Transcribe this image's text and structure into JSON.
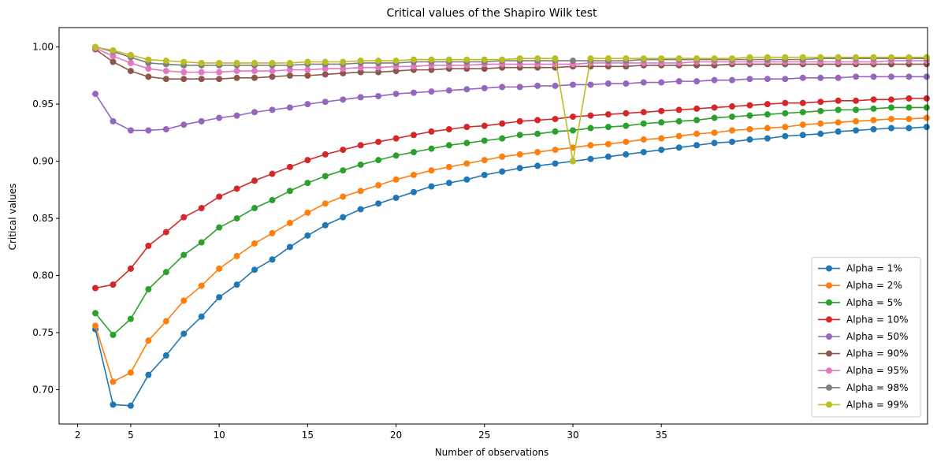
{
  "chart_data": {
    "type": "line",
    "title": "Critical values of the Shapiro Wilk test",
    "xlabel": "Number of observations",
    "ylabel": "Critical values",
    "xlim": [
      0.95,
      50.05
    ],
    "ylim": [
      0.67,
      1.017
    ],
    "xticks": [
      2,
      5,
      10,
      15,
      20,
      25,
      30,
      35
    ],
    "yticks": [
      0.7,
      0.75,
      0.8,
      0.85,
      0.9,
      0.95,
      1.0
    ],
    "ytick_labels": [
      "0.70",
      "0.75",
      "0.80",
      "0.85",
      "0.90",
      "0.95",
      "1.00"
    ],
    "legend_position": "lower right",
    "grid": false,
    "x": [
      3,
      4,
      5,
      6,
      7,
      8,
      9,
      10,
      11,
      12,
      13,
      14,
      15,
      16,
      17,
      18,
      19,
      20,
      21,
      22,
      23,
      24,
      25,
      26,
      27,
      28,
      29,
      30,
      31,
      32,
      33,
      34,
      35,
      36,
      37,
      38,
      39,
      40,
      41,
      42,
      43,
      44,
      45,
      46,
      47,
      48,
      49,
      50
    ],
    "series": [
      {
        "name": "Alpha = 1%",
        "color": "#1f77b4",
        "values": [
          0.753,
          0.687,
          0.686,
          0.713,
          0.73,
          0.749,
          0.764,
          0.781,
          0.792,
          0.805,
          0.814,
          0.825,
          0.835,
          0.844,
          0.851,
          0.858,
          0.863,
          0.868,
          0.873,
          0.878,
          0.881,
          0.884,
          0.888,
          0.891,
          0.894,
          0.896,
          0.898,
          0.9,
          0.902,
          0.904,
          0.906,
          0.908,
          0.91,
          0.912,
          0.914,
          0.916,
          0.917,
          0.919,
          0.92,
          0.922,
          0.923,
          0.924,
          0.926,
          0.927,
          0.928,
          0.929,
          0.929,
          0.93
        ]
      },
      {
        "name": "Alpha = 2%",
        "color": "#ff7f0e",
        "values": [
          0.756,
          0.707,
          0.715,
          0.743,
          0.76,
          0.778,
          0.791,
          0.806,
          0.817,
          0.828,
          0.837,
          0.846,
          0.855,
          0.863,
          0.869,
          0.874,
          0.879,
          0.884,
          0.888,
          0.892,
          0.895,
          0.898,
          0.901,
          0.904,
          0.906,
          0.908,
          0.91,
          0.912,
          0.914,
          0.915,
          0.917,
          0.919,
          0.92,
          0.922,
          0.924,
          0.925,
          0.927,
          0.928,
          0.929,
          0.93,
          0.932,
          0.933,
          0.934,
          0.935,
          0.936,
          0.937,
          0.937,
          0.938
        ]
      },
      {
        "name": "Alpha = 5%",
        "color": "#2ca02c",
        "values": [
          0.767,
          0.748,
          0.762,
          0.788,
          0.803,
          0.818,
          0.829,
          0.842,
          0.85,
          0.859,
          0.866,
          0.874,
          0.881,
          0.887,
          0.892,
          0.897,
          0.901,
          0.905,
          0.908,
          0.911,
          0.914,
          0.916,
          0.918,
          0.92,
          0.923,
          0.924,
          0.926,
          0.927,
          0.929,
          0.93,
          0.931,
          0.933,
          0.934,
          0.935,
          0.936,
          0.938,
          0.939,
          0.94,
          0.941,
          0.942,
          0.943,
          0.944,
          0.945,
          0.945,
          0.946,
          0.947,
          0.947,
          0.947
        ]
      },
      {
        "name": "Alpha = 10%",
        "color": "#d62728",
        "values": [
          0.789,
          0.792,
          0.806,
          0.826,
          0.838,
          0.851,
          0.859,
          0.869,
          0.876,
          0.883,
          0.889,
          0.895,
          0.901,
          0.906,
          0.91,
          0.914,
          0.917,
          0.92,
          0.923,
          0.926,
          0.928,
          0.93,
          0.931,
          0.933,
          0.935,
          0.936,
          0.937,
          0.939,
          0.94,
          0.941,
          0.942,
          0.943,
          0.944,
          0.945,
          0.946,
          0.947,
          0.948,
          0.949,
          0.95,
          0.951,
          0.951,
          0.952,
          0.953,
          0.953,
          0.954,
          0.954,
          0.955,
          0.955
        ]
      },
      {
        "name": "Alpha = 50%",
        "color": "#9467bd",
        "values": [
          0.959,
          0.935,
          0.927,
          0.927,
          0.928,
          0.932,
          0.935,
          0.938,
          0.94,
          0.943,
          0.945,
          0.947,
          0.95,
          0.952,
          0.954,
          0.956,
          0.957,
          0.959,
          0.96,
          0.961,
          0.962,
          0.963,
          0.964,
          0.965,
          0.965,
          0.966,
          0.966,
          0.967,
          0.967,
          0.968,
          0.968,
          0.969,
          0.969,
          0.97,
          0.97,
          0.971,
          0.971,
          0.972,
          0.972,
          0.972,
          0.973,
          0.973,
          0.973,
          0.974,
          0.974,
          0.974,
          0.974,
          0.974
        ]
      },
      {
        "name": "Alpha = 90%",
        "color": "#8c564b",
        "values": [
          0.998,
          0.987,
          0.979,
          0.974,
          0.972,
          0.972,
          0.972,
          0.972,
          0.973,
          0.973,
          0.974,
          0.975,
          0.975,
          0.976,
          0.977,
          0.978,
          0.978,
          0.979,
          0.98,
          0.98,
          0.981,
          0.981,
          0.981,
          0.982,
          0.982,
          0.982,
          0.982,
          0.983,
          0.983,
          0.983,
          0.983,
          0.984,
          0.984,
          0.984,
          0.984,
          0.984,
          0.985,
          0.985,
          0.985,
          0.985,
          0.985,
          0.985,
          0.985,
          0.985,
          0.985,
          0.985,
          0.985,
          0.985
        ]
      },
      {
        "name": "Alpha = 95%",
        "color": "#e377c2",
        "values": [
          0.999,
          0.992,
          0.986,
          0.981,
          0.979,
          0.978,
          0.978,
          0.978,
          0.979,
          0.979,
          0.979,
          0.98,
          0.98,
          0.981,
          0.981,
          0.982,
          0.982,
          0.983,
          0.983,
          0.984,
          0.984,
          0.984,
          0.985,
          0.985,
          0.985,
          0.985,
          0.985,
          0.985,
          0.986,
          0.986,
          0.986,
          0.986,
          0.986,
          0.986,
          0.987,
          0.987,
          0.987,
          0.987,
          0.987,
          0.987,
          0.987,
          0.987,
          0.987,
          0.987,
          0.987,
          0.988,
          0.988,
          0.988
        ]
      },
      {
        "name": "Alpha = 98%",
        "color": "#7f7f7f",
        "values": [
          1.0,
          0.996,
          0.991,
          0.986,
          0.985,
          0.984,
          0.984,
          0.984,
          0.984,
          0.984,
          0.984,
          0.984,
          0.985,
          0.985,
          0.985,
          0.986,
          0.986,
          0.986,
          0.987,
          0.987,
          0.987,
          0.987,
          0.987,
          0.988,
          0.988,
          0.988,
          0.988,
          0.988,
          0.988,
          0.988,
          0.988,
          0.989,
          0.989,
          0.989,
          0.989,
          0.989,
          0.989,
          0.989,
          0.989,
          0.989,
          0.989,
          0.99,
          0.99,
          0.99,
          0.99,
          0.99,
          0.99,
          0.99
        ]
      },
      {
        "name": "Alpha = 99%",
        "color": "#bcbd22",
        "values": [
          1.0,
          0.997,
          0.993,
          0.989,
          0.988,
          0.987,
          0.986,
          0.986,
          0.986,
          0.986,
          0.986,
          0.986,
          0.987,
          0.987,
          0.987,
          0.988,
          0.988,
          0.988,
          0.989,
          0.989,
          0.989,
          0.989,
          0.989,
          0.989,
          0.99,
          0.99,
          0.99,
          0.9,
          0.99,
          0.99,
          0.99,
          0.99,
          0.99,
          0.99,
          0.99,
          0.99,
          0.99,
          0.991,
          0.991,
          0.991,
          0.991,
          0.991,
          0.991,
          0.991,
          0.991,
          0.991,
          0.991,
          0.991
        ]
      }
    ]
  }
}
